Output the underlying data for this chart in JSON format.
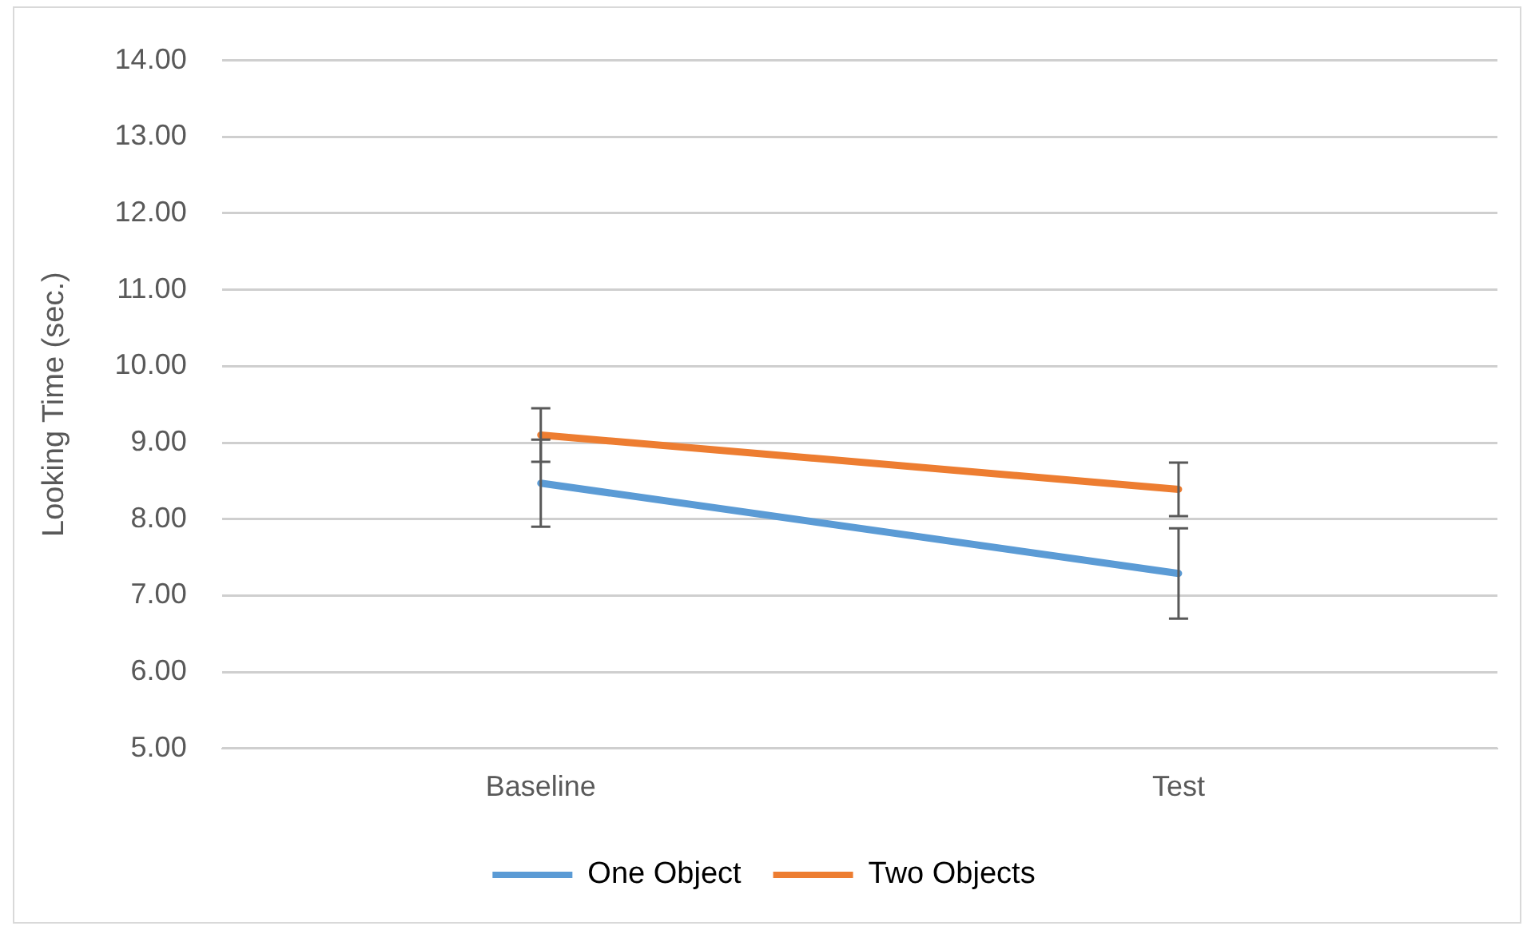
{
  "chart_data": {
    "type": "line",
    "ylabel": "Looking Time (sec.)",
    "categories": [
      "Baseline",
      "Test"
    ],
    "series": [
      {
        "name": "One Object",
        "color": "#5b9bd5",
        "values": [
          8.47,
          7.29
        ],
        "errors": [
          0.57,
          0.59
        ]
      },
      {
        "name": "Two Objects",
        "color": "#ed7d31",
        "values": [
          9.1,
          8.39
        ],
        "errors": [
          0.35,
          0.35
        ]
      }
    ],
    "ylim": [
      5,
      14
    ],
    "yticks": [
      {
        "value": 5,
        "label": "5.00"
      },
      {
        "value": 6,
        "label": "6.00"
      },
      {
        "value": 7,
        "label": "7.00"
      },
      {
        "value": 8,
        "label": "8.00"
      },
      {
        "value": 9,
        "label": "9.00"
      },
      {
        "value": 10,
        "label": "10.00"
      },
      {
        "value": 11,
        "label": "11.00"
      },
      {
        "value": 12,
        "label": "12.00"
      },
      {
        "value": 13,
        "label": "13.00"
      },
      {
        "value": 14,
        "label": "14.00"
      }
    ],
    "grid": "y",
    "legend": "bottom",
    "marker": "none",
    "line_style": "solid"
  }
}
